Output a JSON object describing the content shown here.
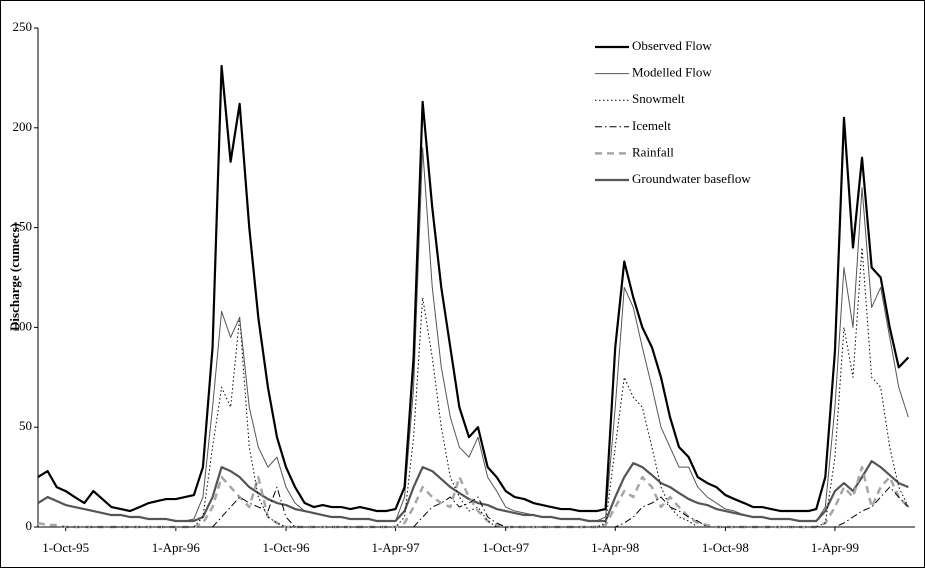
{
  "chart_data": {
    "type": "line",
    "y_label": "Discharge (cumecs)",
    "x": [
      "1995-08-16",
      "1995-09-01",
      "1995-09-16",
      "1995-10-01",
      "1995-10-16",
      "1995-11-01",
      "1995-11-16",
      "1995-12-01",
      "1995-12-16",
      "1996-01-01",
      "1996-01-16",
      "1996-02-01",
      "1996-02-16",
      "1996-03-01",
      "1996-03-16",
      "1996-04-01",
      "1996-04-16",
      "1996-05-01",
      "1996-05-16",
      "1996-06-01",
      "1996-06-16",
      "1996-07-01",
      "1996-07-16",
      "1996-08-01",
      "1996-08-16",
      "1996-09-01",
      "1996-09-16",
      "1996-10-01",
      "1996-10-16",
      "1996-11-01",
      "1996-11-16",
      "1996-12-01",
      "1996-12-16",
      "1997-01-01",
      "1997-01-16",
      "1997-02-01",
      "1997-02-16",
      "1997-03-01",
      "1997-03-16",
      "1997-04-01",
      "1997-04-16",
      "1997-05-01",
      "1997-05-16",
      "1997-06-01",
      "1997-06-16",
      "1997-07-01",
      "1997-07-16",
      "1997-08-01",
      "1997-08-16",
      "1997-09-01",
      "1997-09-16",
      "1997-10-01",
      "1997-10-16",
      "1997-11-01",
      "1997-11-16",
      "1997-12-01",
      "1997-12-16",
      "1998-01-01",
      "1998-01-16",
      "1998-02-01",
      "1998-02-16",
      "1998-03-01",
      "1998-03-16",
      "1998-04-01",
      "1998-04-16",
      "1998-05-01",
      "1998-05-16",
      "1998-06-01",
      "1998-06-16",
      "1998-07-01",
      "1998-07-16",
      "1998-08-01",
      "1998-08-16",
      "1998-09-01",
      "1998-09-16",
      "1998-10-01",
      "1998-10-16",
      "1998-11-01",
      "1998-11-16",
      "1998-12-01",
      "1998-12-16",
      "1999-01-01",
      "1999-01-16",
      "1999-02-01",
      "1999-02-16",
      "1999-03-01",
      "1999-03-16",
      "1999-04-01",
      "1999-04-16",
      "1999-05-01",
      "1999-05-16",
      "1999-06-01",
      "1999-06-16",
      "1999-07-01",
      "1999-07-16",
      "1999-08-01"
    ],
    "series": [
      {
        "name": "Observed Flow",
        "color": "#000000",
        "line_style": "solid",
        "line_width": 2.2,
        "values": [
          25,
          28,
          20,
          18,
          15,
          12,
          18,
          14,
          10,
          9,
          8,
          10,
          12,
          13,
          14,
          14,
          15,
          16,
          30,
          90,
          231,
          183,
          212,
          150,
          105,
          70,
          45,
          30,
          20,
          12,
          10,
          11,
          10,
          10,
          9,
          10,
          9,
          8,
          8,
          9,
          20,
          85,
          213,
          160,
          120,
          90,
          60,
          45,
          50,
          30,
          25,
          18,
          15,
          14,
          12,
          11,
          10,
          9,
          9,
          8,
          8,
          8,
          9,
          90,
          133,
          115,
          100,
          90,
          75,
          55,
          40,
          35,
          25,
          22,
          20,
          16,
          14,
          12,
          10,
          10,
          9,
          8,
          8,
          8,
          8,
          9,
          25,
          88,
          205,
          140,
          185,
          130,
          125,
          100,
          80,
          85
        ]
      },
      {
        "name": "Modelled Flow",
        "color": "#555555",
        "line_style": "solid",
        "line_width": 1,
        "values": [
          12,
          15,
          13,
          11,
          10,
          9,
          8,
          7,
          6,
          6,
          5,
          5,
          4,
          4,
          4,
          3,
          3,
          4,
          15,
          60,
          108,
          95,
          105,
          60,
          40,
          30,
          35,
          20,
          12,
          8,
          7,
          6,
          5,
          5,
          4,
          4,
          4,
          3,
          3,
          3,
          15,
          70,
          190,
          120,
          80,
          55,
          40,
          35,
          45,
          25,
          18,
          10,
          8,
          7,
          6,
          5,
          5,
          4,
          4,
          4,
          3,
          3,
          5,
          60,
          120,
          110,
          90,
          70,
          50,
          40,
          30,
          30,
          20,
          15,
          12,
          9,
          8,
          6,
          5,
          5,
          4,
          4,
          4,
          3,
          3,
          3,
          10,
          60,
          130,
          100,
          170,
          110,
          120,
          95,
          70,
          55
        ]
      },
      {
        "name": "Snowmelt",
        "color": "#000000",
        "line_style": "dotted",
        "line_width": 1,
        "values": [
          0,
          0,
          0,
          0,
          0,
          0,
          0,
          0,
          0,
          0,
          0,
          0,
          0,
          0,
          0,
          0,
          0,
          0,
          5,
          40,
          70,
          60,
          105,
          40,
          15,
          5,
          2,
          0,
          0,
          0,
          0,
          0,
          0,
          0,
          0,
          0,
          0,
          0,
          0,
          0,
          5,
          45,
          115,
          85,
          50,
          25,
          15,
          8,
          10,
          3,
          0,
          0,
          0,
          0,
          0,
          0,
          0,
          0,
          0,
          0,
          0,
          0,
          2,
          40,
          75,
          65,
          60,
          40,
          20,
          10,
          5,
          3,
          0,
          0,
          0,
          0,
          0,
          0,
          0,
          0,
          0,
          0,
          0,
          0,
          0,
          0,
          2,
          35,
          100,
          75,
          140,
          75,
          70,
          40,
          20,
          10
        ]
      },
      {
        "name": "Icemelt",
        "color": "#000000",
        "line_style": "dashdot",
        "line_width": 1,
        "values": [
          0,
          0,
          0,
          0,
          0,
          0,
          0,
          0,
          0,
          0,
          0,
          0,
          0,
          0,
          0,
          0,
          0,
          0,
          0,
          0,
          5,
          10,
          15,
          12,
          10,
          8,
          20,
          5,
          0,
          0,
          0,
          0,
          0,
          0,
          0,
          0,
          0,
          0,
          0,
          0,
          0,
          0,
          5,
          10,
          12,
          15,
          10,
          12,
          15,
          5,
          2,
          0,
          0,
          0,
          0,
          0,
          0,
          0,
          0,
          0,
          0,
          0,
          0,
          0,
          2,
          5,
          10,
          12,
          15,
          10,
          8,
          5,
          3,
          0,
          0,
          0,
          0,
          0,
          0,
          0,
          0,
          0,
          0,
          0,
          0,
          0,
          0,
          0,
          2,
          5,
          8,
          10,
          15,
          20,
          15,
          10
        ]
      },
      {
        "name": "Rainfall",
        "color": "#a6a6a6",
        "line_style": "dashed",
        "line_width": 2.5,
        "values": [
          2,
          1,
          1,
          0,
          0,
          0,
          0,
          0,
          0,
          0,
          0,
          0,
          0,
          0,
          0,
          0,
          0,
          0,
          2,
          10,
          25,
          20,
          15,
          10,
          25,
          5,
          2,
          0,
          0,
          0,
          0,
          0,
          0,
          0,
          0,
          0,
          0,
          0,
          0,
          0,
          2,
          10,
          20,
          15,
          12,
          10,
          25,
          15,
          8,
          3,
          1,
          0,
          0,
          0,
          0,
          0,
          0,
          0,
          0,
          0,
          0,
          0,
          1,
          10,
          18,
          15,
          25,
          20,
          10,
          15,
          10,
          5,
          2,
          1,
          0,
          0,
          0,
          0,
          0,
          0,
          0,
          0,
          0,
          0,
          0,
          0,
          2,
          10,
          20,
          15,
          30,
          10,
          20,
          25,
          15,
          10
        ]
      },
      {
        "name": "Groundwater baseflow",
        "color": "#555555",
        "line_style": "solid",
        "line_width": 2.2,
        "values": [
          12,
          15,
          13,
          11,
          10,
          9,
          8,
          7,
          6,
          6,
          5,
          5,
          4,
          4,
          4,
          3,
          3,
          3,
          5,
          15,
          30,
          28,
          25,
          20,
          17,
          14,
          12,
          11,
          9,
          8,
          7,
          6,
          5,
          5,
          4,
          4,
          4,
          3,
          3,
          3,
          8,
          20,
          30,
          28,
          24,
          20,
          17,
          14,
          12,
          11,
          9,
          8,
          7,
          6,
          6,
          5,
          5,
          4,
          4,
          4,
          3,
          3,
          3,
          15,
          25,
          32,
          30,
          26,
          22,
          20,
          17,
          14,
          12,
          11,
          9,
          8,
          7,
          6,
          5,
          5,
          4,
          4,
          4,
          3,
          3,
          3,
          8,
          18,
          22,
          18,
          25,
          33,
          30,
          26,
          22,
          20
        ]
      }
    ],
    "xlim": [
      "1995-08-16",
      "1999-08-12"
    ],
    "xticks": [
      {
        "value": "1995-10-01",
        "label": "1-Oct-95"
      },
      {
        "value": "1996-04-01",
        "label": "1-Apr-96"
      },
      {
        "value": "1996-10-01",
        "label": "1-Oct-96"
      },
      {
        "value": "1997-04-01",
        "label": "1-Apr-97"
      },
      {
        "value": "1997-10-01",
        "label": "1-Oct-97"
      },
      {
        "value": "1998-04-01",
        "label": "1-Apr-98"
      },
      {
        "value": "1998-10-01",
        "label": "1-Oct-98"
      },
      {
        "value": "1999-04-01",
        "label": "1-Apr-99"
      }
    ],
    "ylim": [
      0,
      250
    ],
    "yticks": [
      0,
      50,
      100,
      150,
      200,
      250
    ],
    "grid": false,
    "legend": "upper right"
  }
}
